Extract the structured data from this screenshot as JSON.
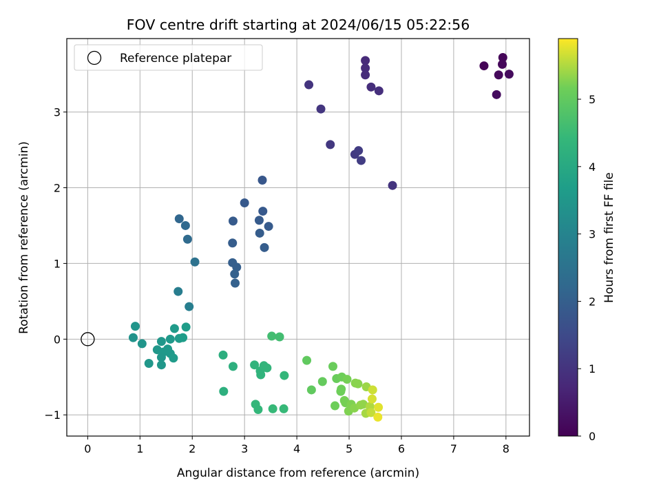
{
  "chart_data": {
    "type": "scatter",
    "title": "FOV centre drift starting at 2024/06/15 05:22:56",
    "xlabel": "Angular distance from reference (arcmin)",
    "ylabel": "Rotation from reference (arcmin)",
    "xlim": [
      -0.4,
      8.45
    ],
    "ylim": [
      -1.28,
      3.97
    ],
    "xticks": [
      0,
      1,
      2,
      3,
      4,
      5,
      6,
      7,
      8
    ],
    "yticks": [
      -1,
      0,
      1,
      2,
      3
    ],
    "grid": true,
    "legend": {
      "position": "top-left",
      "entries": [
        "Reference platepar"
      ]
    },
    "reference_point": {
      "x": 0,
      "y": 0,
      "marker": "open-circle"
    },
    "colorbar": {
      "label": "Hours from first FF file",
      "colormap": "viridis",
      "range": [
        0,
        5.9
      ],
      "ticks": [
        0,
        1,
        2,
        3,
        4,
        5
      ]
    },
    "series": [
      {
        "points": [
          {
            "x": 7.58,
            "y": 3.61,
            "c": 0.05
          },
          {
            "x": 7.94,
            "y": 3.72,
            "c": 0.1
          },
          {
            "x": 7.93,
            "y": 3.63,
            "c": 0.12
          },
          {
            "x": 7.86,
            "y": 3.49,
            "c": 0.15
          },
          {
            "x": 8.06,
            "y": 3.5,
            "c": 0.18
          },
          {
            "x": 7.82,
            "y": 3.23,
            "c": 0.2
          },
          {
            "x": 5.31,
            "y": 3.68,
            "c": 0.8
          },
          {
            "x": 5.31,
            "y": 3.58,
            "c": 0.82
          },
          {
            "x": 5.31,
            "y": 3.49,
            "c": 0.84
          },
          {
            "x": 5.42,
            "y": 3.33,
            "c": 0.87
          },
          {
            "x": 5.57,
            "y": 3.28,
            "c": 0.9
          },
          {
            "x": 4.23,
            "y": 3.36,
            "c": 1.0
          },
          {
            "x": 4.46,
            "y": 3.04,
            "c": 1.05
          },
          {
            "x": 4.64,
            "y": 2.57,
            "c": 1.1
          },
          {
            "x": 5.11,
            "y": 2.44,
            "c": 1.15
          },
          {
            "x": 5.18,
            "y": 2.49,
            "c": 1.18
          },
          {
            "x": 5.23,
            "y": 2.36,
            "c": 1.2
          },
          {
            "x": 5.83,
            "y": 2.03,
            "c": 1.0
          },
          {
            "x": 3.34,
            "y": 2.1,
            "c": 1.8
          },
          {
            "x": 3.0,
            "y": 1.8,
            "c": 1.85
          },
          {
            "x": 3.35,
            "y": 1.69,
            "c": 1.85
          },
          {
            "x": 2.78,
            "y": 1.56,
            "c": 1.9
          },
          {
            "x": 3.28,
            "y": 1.57,
            "c": 1.9
          },
          {
            "x": 3.46,
            "y": 1.49,
            "c": 1.9
          },
          {
            "x": 3.29,
            "y": 1.4,
            "c": 1.95
          },
          {
            "x": 2.77,
            "y": 1.27,
            "c": 1.95
          },
          {
            "x": 3.38,
            "y": 1.21,
            "c": 1.95
          },
          {
            "x": 2.77,
            "y": 1.01,
            "c": 2.0
          },
          {
            "x": 2.85,
            "y": 0.95,
            "c": 2.0
          },
          {
            "x": 2.81,
            "y": 0.86,
            "c": 2.05
          },
          {
            "x": 2.82,
            "y": 0.74,
            "c": 2.05
          },
          {
            "x": 1.75,
            "y": 1.59,
            "c": 2.2
          },
          {
            "x": 1.87,
            "y": 1.5,
            "c": 2.25
          },
          {
            "x": 1.91,
            "y": 1.32,
            "c": 2.3
          },
          {
            "x": 2.05,
            "y": 1.02,
            "c": 2.5
          },
          {
            "x": 1.73,
            "y": 0.63,
            "c": 2.8
          },
          {
            "x": 1.94,
            "y": 0.43,
            "c": 2.85
          },
          {
            "x": 0.91,
            "y": 0.17,
            "c": 3.45
          },
          {
            "x": 0.87,
            "y": 0.02,
            "c": 3.4
          },
          {
            "x": 1.04,
            "y": -0.06,
            "c": 3.45
          },
          {
            "x": 1.17,
            "y": -0.32,
            "c": 3.5
          },
          {
            "x": 1.33,
            "y": -0.14,
            "c": 3.5
          },
          {
            "x": 1.41,
            "y": -0.03,
            "c": 3.5
          },
          {
            "x": 1.45,
            "y": -0.17,
            "c": 3.55
          },
          {
            "x": 1.41,
            "y": -0.24,
            "c": 3.5
          },
          {
            "x": 1.41,
            "y": -0.34,
            "c": 3.5
          },
          {
            "x": 1.53,
            "y": -0.13,
            "c": 3.55
          },
          {
            "x": 1.58,
            "y": 0.0,
            "c": 3.55
          },
          {
            "x": 1.58,
            "y": -0.19,
            "c": 3.55
          },
          {
            "x": 1.64,
            "y": -0.25,
            "c": 3.6
          },
          {
            "x": 1.66,
            "y": 0.14,
            "c": 3.6
          },
          {
            "x": 1.75,
            "y": 0.01,
            "c": 3.6
          },
          {
            "x": 1.82,
            "y": 0.02,
            "c": 3.65
          },
          {
            "x": 1.88,
            "y": 0.16,
            "c": 3.65
          },
          {
            "x": 2.59,
            "y": -0.21,
            "c": 4.15
          },
          {
            "x": 2.6,
            "y": -0.69,
            "c": 4.2
          },
          {
            "x": 2.78,
            "y": -0.36,
            "c": 4.2
          },
          {
            "x": 3.19,
            "y": -0.34,
            "c": 4.3
          },
          {
            "x": 3.3,
            "y": -0.42,
            "c": 4.3
          },
          {
            "x": 3.31,
            "y": -0.47,
            "c": 4.3
          },
          {
            "x": 3.37,
            "y": -0.35,
            "c": 4.35
          },
          {
            "x": 3.43,
            "y": -0.38,
            "c": 4.35
          },
          {
            "x": 3.76,
            "y": -0.48,
            "c": 4.4
          },
          {
            "x": 3.21,
            "y": -0.86,
            "c": 4.4
          },
          {
            "x": 3.26,
            "y": -0.93,
            "c": 4.4
          },
          {
            "x": 3.54,
            "y": -0.92,
            "c": 4.45
          },
          {
            "x": 3.75,
            "y": -0.92,
            "c": 4.45
          },
          {
            "x": 3.52,
            "y": 0.04,
            "c": 4.6
          },
          {
            "x": 3.67,
            "y": 0.03,
            "c": 4.6
          },
          {
            "x": 4.19,
            "y": -0.28,
            "c": 5.0
          },
          {
            "x": 4.28,
            "y": -0.67,
            "c": 5.0
          },
          {
            "x": 4.49,
            "y": -0.56,
            "c": 5.05
          },
          {
            "x": 4.69,
            "y": -0.36,
            "c": 5.1
          },
          {
            "x": 4.76,
            "y": -0.52,
            "c": 5.1
          },
          {
            "x": 4.86,
            "y": -0.5,
            "c": 5.15
          },
          {
            "x": 4.85,
            "y": -0.66,
            "c": 5.15
          },
          {
            "x": 4.84,
            "y": -0.69,
            "c": 5.15
          },
          {
            "x": 4.73,
            "y": -0.88,
            "c": 5.15
          },
          {
            "x": 4.91,
            "y": -0.81,
            "c": 5.2
          },
          {
            "x": 4.93,
            "y": -0.84,
            "c": 5.2
          },
          {
            "x": 4.96,
            "y": -0.53,
            "c": 5.2
          },
          {
            "x": 4.99,
            "y": -0.95,
            "c": 5.25
          },
          {
            "x": 5.04,
            "y": -0.86,
            "c": 5.25
          },
          {
            "x": 5.1,
            "y": -0.91,
            "c": 5.3
          },
          {
            "x": 5.12,
            "y": -0.58,
            "c": 5.3
          },
          {
            "x": 5.17,
            "y": -0.59,
            "c": 5.3
          },
          {
            "x": 5.22,
            "y": -0.87,
            "c": 5.35
          },
          {
            "x": 5.27,
            "y": -0.86,
            "c": 5.35
          },
          {
            "x": 5.33,
            "y": -0.63,
            "c": 5.4
          },
          {
            "x": 5.32,
            "y": -0.98,
            "c": 5.45
          },
          {
            "x": 5.4,
            "y": -0.89,
            "c": 5.5
          },
          {
            "x": 5.42,
            "y": -0.97,
            "c": 5.6
          },
          {
            "x": 5.45,
            "y": -0.67,
            "c": 5.65
          },
          {
            "x": 5.44,
            "y": -0.79,
            "c": 5.7
          },
          {
            "x": 5.56,
            "y": -0.9,
            "c": 5.75
          },
          {
            "x": 5.55,
            "y": -1.03,
            "c": 5.8
          }
        ]
      }
    ]
  }
}
